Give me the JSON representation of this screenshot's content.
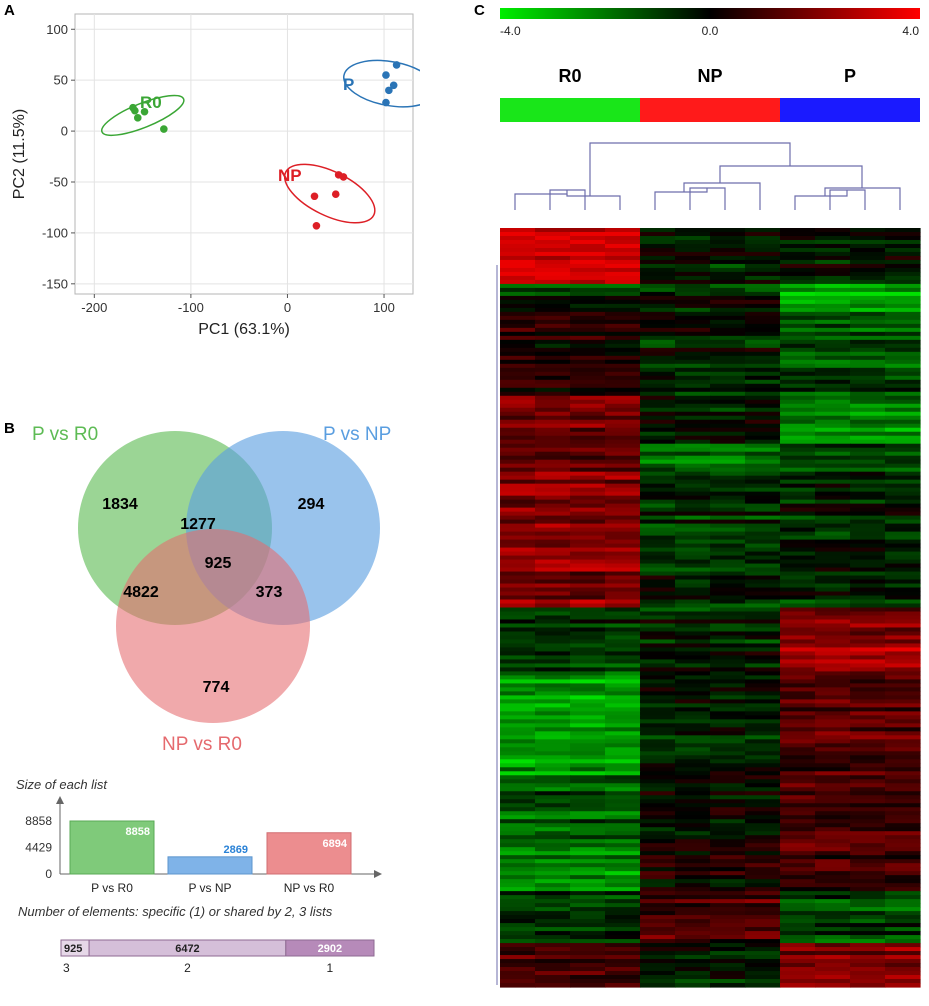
{
  "panels": {
    "a": "A",
    "b": "B",
    "c": "C"
  },
  "colors": {
    "r0": "#3aa635",
    "np": "#dd1f26",
    "p": "#2a74b6",
    "venn_green": "#5dbb54",
    "venn_blue": "#5a9ee0",
    "venn_red": "#e56a6e"
  },
  "pca": {
    "xlabel": "PC1 (63.1%)",
    "ylabel": "PC2 (11.5%)",
    "xticks": [
      "-200",
      "-100",
      "0",
      "100"
    ],
    "yticks": [
      "100",
      "50",
      "0",
      "-50",
      "-100",
      "-150"
    ],
    "groups": [
      {
        "name": "R0",
        "points": [
          [
            -160,
            23
          ],
          [
            -155,
            13
          ],
          [
            -148,
            19
          ],
          [
            -158,
            20
          ],
          [
            -128,
            2
          ]
        ]
      },
      {
        "name": "NP",
        "points": [
          [
            28,
            -64
          ],
          [
            30,
            -93
          ],
          [
            50,
            -62
          ],
          [
            53,
            -43
          ],
          [
            58,
            -45
          ]
        ]
      },
      {
        "name": "P",
        "points": [
          [
            102,
            55
          ],
          [
            105,
            40
          ],
          [
            102,
            28
          ],
          [
            110,
            45
          ],
          [
            113,
            65
          ]
        ]
      }
    ]
  },
  "chart_data": [
    {
      "type": "scatter",
      "title": "",
      "xlabel": "PC1 (63.1%)",
      "ylabel": "PC2 (11.5%)",
      "xlim": [
        -220,
        130
      ],
      "ylim": [
        -160,
        115
      ],
      "series": [
        {
          "name": "R0",
          "x": [
            -160,
            -155,
            -148,
            -158,
            -128
          ],
          "y": [
            23,
            13,
            19,
            20,
            2
          ]
        },
        {
          "name": "NP",
          "x": [
            28,
            30,
            50,
            53,
            58
          ],
          "y": [
            -64,
            -93,
            -62,
            -43,
            -45
          ]
        },
        {
          "name": "P",
          "x": [
            102,
            105,
            102,
            110,
            113
          ],
          "y": [
            55,
            40,
            28,
            45,
            65
          ]
        }
      ]
    },
    {
      "type": "bar",
      "title": "Size of each list",
      "categories": [
        "P vs R0",
        "P vs NP",
        "NP vs R0"
      ],
      "values": [
        8858,
        2869,
        6894
      ],
      "yticks": [
        "8858",
        "4429",
        "0"
      ],
      "ylim": [
        0,
        10000
      ]
    },
    {
      "type": "bar",
      "title": "Number of elements: specific (1) or shared by 2, 3 lists",
      "categories": [
        "3",
        "2",
        "1"
      ],
      "values": [
        925,
        6472,
        2902
      ]
    },
    {
      "type": "heatmap",
      "scale_labels": [
        "-4.0",
        "0.0",
        "4.0"
      ],
      "groups": [
        "R0",
        "NP",
        "P"
      ],
      "columns_per_group": 4
    }
  ],
  "venn": {
    "sets": [
      "P vs R0",
      "P vs NP",
      "NP vs R0"
    ],
    "counts": {
      "r0_only": "1834",
      "pr0_pnp": "1277",
      "pnp_only": "294",
      "all": "925",
      "pr0_npr0": "4822",
      "pnp_npr0": "373",
      "npr0_only": "774"
    }
  },
  "heatmap": {
    "scale": {
      "min": "-4.0",
      "mid": "0.0",
      "max": "4.0"
    },
    "groups": [
      "R0",
      "NP",
      "P"
    ]
  }
}
